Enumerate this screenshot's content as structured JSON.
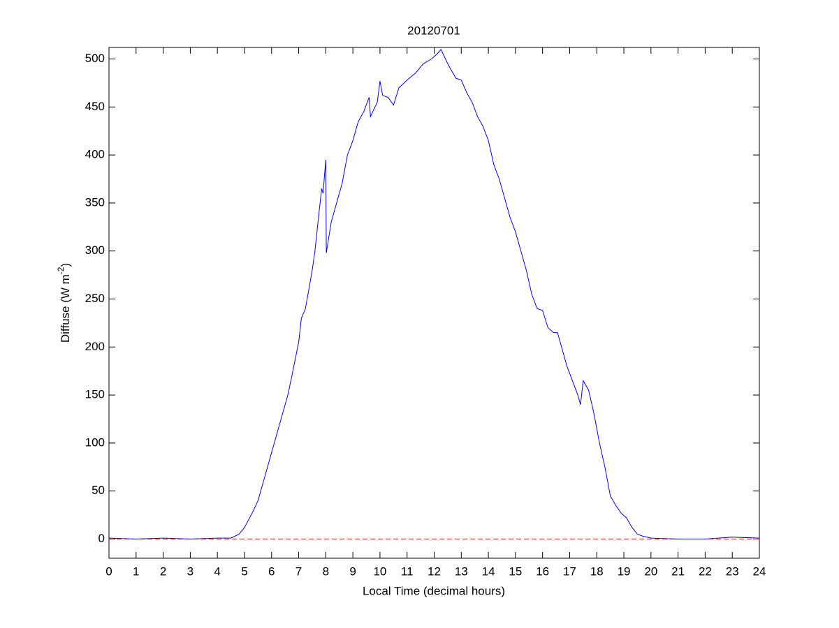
{
  "chart_data": {
    "type": "line",
    "title": "20120701",
    "xlabel": "Local Time (decimal hours)",
    "ylabel": [
      "Diffuse (W m",
      "-2",
      ")"
    ],
    "xlim": [
      0,
      24
    ],
    "xticks": [
      0,
      1,
      2,
      3,
      4,
      5,
      6,
      7,
      8,
      9,
      10,
      11,
      12,
      13,
      14,
      15,
      16,
      17,
      18,
      19,
      20,
      21,
      22,
      23,
      24
    ],
    "ylim": [
      -20,
      512
    ],
    "yticks": [
      0,
      50,
      100,
      150,
      200,
      250,
      300,
      350,
      400,
      450,
      500
    ],
    "reference_line": {
      "value": 0,
      "color": "#e03030",
      "style": "dashed"
    },
    "series": [
      {
        "color": "#0000ff",
        "x": [
          0,
          1,
          2,
          3,
          4,
          4.5,
          4.8,
          5.0,
          5.3,
          5.5,
          5.75,
          6.0,
          6.25,
          6.5,
          6.6,
          6.75,
          7.0,
          7.1,
          7.25,
          7.5,
          7.6,
          7.75,
          7.85,
          7.9,
          8.0,
          8.02,
          8.2,
          8.4,
          8.6,
          8.8,
          9.0,
          9.2,
          9.4,
          9.6,
          9.65,
          9.9,
          10.0,
          10.1,
          10.3,
          10.5,
          10.7,
          11.0,
          11.3,
          11.6,
          11.9,
          12.1,
          12.25,
          12.5,
          12.8,
          13.0,
          13.2,
          13.4,
          13.6,
          13.8,
          14.0,
          14.2,
          14.4,
          14.6,
          14.8,
          15.0,
          15.2,
          15.4,
          15.6,
          15.8,
          16.0,
          16.2,
          16.4,
          16.55,
          16.7,
          16.9,
          17.1,
          17.3,
          17.4,
          17.5,
          17.7,
          17.9,
          18.1,
          18.3,
          18.5,
          18.7,
          18.9,
          19.1,
          19.3,
          19.5,
          19.7,
          20.0,
          21,
          22,
          22.5,
          23,
          24
        ],
        "values": [
          1,
          0,
          1,
          0,
          1,
          1,
          5,
          12,
          28,
          40,
          65,
          90,
          115,
          140,
          150,
          170,
          205,
          230,
          240,
          280,
          300,
          340,
          365,
          360,
          395,
          298,
          330,
          350,
          370,
          400,
          415,
          435,
          445,
          460,
          440,
          455,
          477,
          462,
          460,
          452,
          470,
          478,
          485,
          495,
          500,
          505,
          510,
          495,
          480,
          478,
          465,
          455,
          440,
          430,
          415,
          390,
          375,
          355,
          335,
          320,
          300,
          280,
          255,
          240,
          238,
          220,
          215,
          215,
          200,
          180,
          165,
          150,
          140,
          165,
          155,
          130,
          100,
          75,
          45,
          35,
          27,
          22,
          12,
          5,
          3,
          1,
          0,
          0,
          1,
          2,
          1
        ]
      }
    ]
  }
}
